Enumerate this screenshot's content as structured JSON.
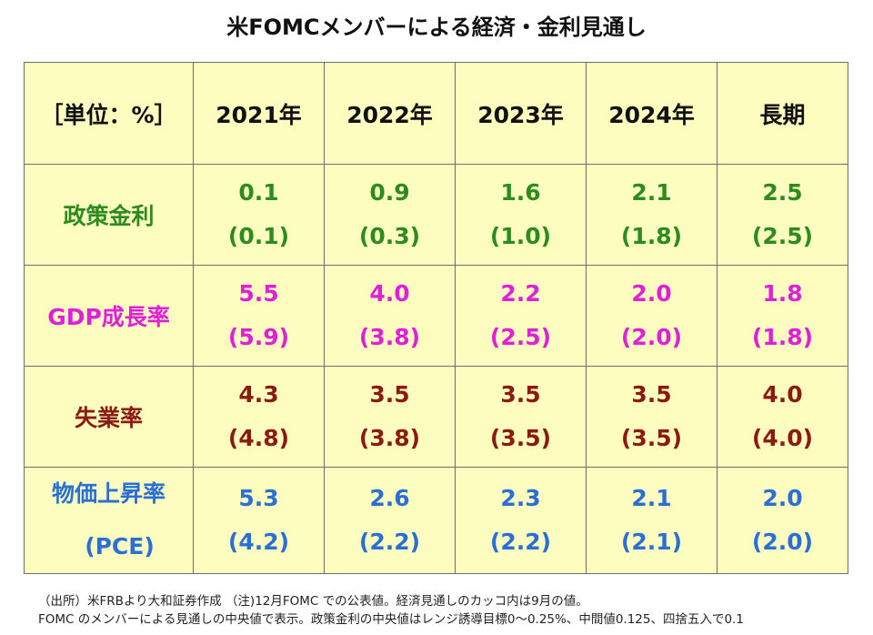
{
  "title": "米FOMCメンバーによる経済・金利見通し",
  "chart_data": {
    "type": "table",
    "title": "米FOMCメンバーによる経済・金利見通し",
    "unit_label": "［単位：%］",
    "columns": [
      "2021年",
      "2022年",
      "2023年",
      "2024年",
      "長期"
    ],
    "rows": [
      {
        "label": "政策金利",
        "values": [
          "0.1",
          "0.9",
          "1.6",
          "2.1",
          "2.5"
        ],
        "previous": [
          "(0.1)",
          "(0.3)",
          "(1.0)",
          "(1.8)",
          "(2.5)"
        ]
      },
      {
        "label": "GDP成長率",
        "values": [
          "5.5",
          "4.0",
          "2.2",
          "2.0",
          "1.8"
        ],
        "previous": [
          "(5.9)",
          "(3.8)",
          "(2.5)",
          "(2.0)",
          "(1.8)"
        ]
      },
      {
        "label": "失業率",
        "values": [
          "4.3",
          "3.5",
          "3.5",
          "3.5",
          "4.0"
        ],
        "previous": [
          "(4.8)",
          "(3.8)",
          "(3.5)",
          "(3.5)",
          "(4.0)"
        ]
      },
      {
        "label": "物価上昇率",
        "label_line2": "(PCE)",
        "values": [
          "5.3",
          "2.6",
          "2.3",
          "2.1",
          "2.0"
        ],
        "previous": [
          "(4.2)",
          "(2.2)",
          "(2.2)",
          "(2.1)",
          "(2.0)"
        ]
      }
    ]
  },
  "colors": {
    "background": "#fefdc0",
    "border": "#6e6e6e",
    "row_colors": [
      "#2e8b1e",
      "#e020d8",
      "#8b1a10",
      "#2a6fd6"
    ]
  },
  "notes": {
    "line1": "（出所）米FRBより大和証券作成 （注)12月FOMC での公表値。経済見通しのカッコ内は9月の値。",
    "line2": "FOMC のメンバーによる見通しの中央値で表示。政策金利の中央値はレンジ誘導目標0～0.25%、中間値0.125、四捨五入で0.1"
  }
}
